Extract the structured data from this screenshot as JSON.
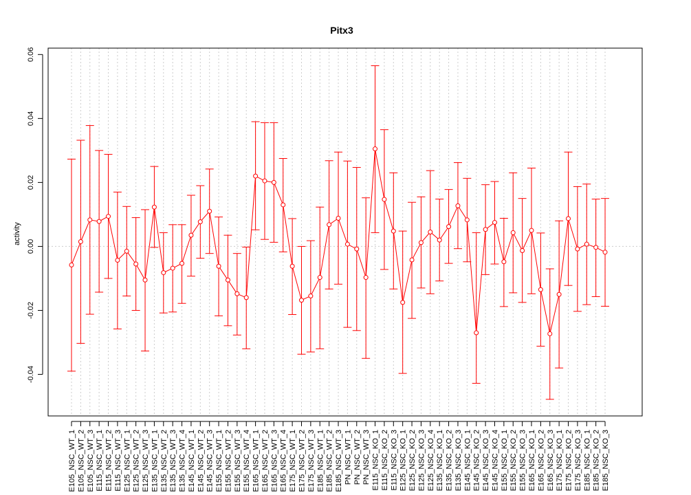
{
  "chart_data": {
    "type": "line",
    "title": "Pitx3",
    "xlabel": "",
    "ylabel": "activity",
    "ylim": [
      -0.053,
      0.062
    ],
    "y_ticks": [
      -0.04,
      -0.02,
      0.0,
      0.02,
      0.04,
      0.06
    ],
    "y_tick_labels": [
      "-0.04",
      "-0.02",
      "0.00",
      "0.02",
      "0.04",
      "0.06"
    ],
    "grid": true,
    "reference_line": 0.0,
    "colors": {
      "series": "#ff0000",
      "grid": "#cccccc",
      "axis": "#000000"
    },
    "categories": [
      "E105_NSC_WT_1",
      "E105_NSC_WT_2",
      "E105_NSC_WT_3",
      "E115_NSC_WT_1",
      "E115_NSC_WT_2",
      "E115_NSC_WT_3",
      "E125_NSC_WT_1",
      "E125_NSC_WT_2",
      "E125_NSC_WT_3",
      "E135_NSC_WT_1",
      "E135_NSC_WT_2",
      "E135_NSC_WT_3",
      "E135_NSC_WT_4",
      "E145_NSC_WT_1",
      "E145_NSC_WT_2",
      "E145_NSC_WT_3",
      "E155_NSC_WT_1",
      "E155_NSC_WT_2",
      "E155_NSC_WT_3",
      "E155_NSC_WT_4",
      "E165_NSC_WT_1",
      "E165_NSC_WT_2",
      "E165_NSC_WT_3",
      "E165_NSC_WT_4",
      "E175_NSC_WT_1",
      "E175_NSC_WT_2",
      "E175_NSC_WT_3",
      "E185_NSC_WT_1",
      "E185_NSC_WT_2",
      "E185_NSC_WT_3",
      "PN_NSC_WT_1",
      "PN_NSC_WT_2",
      "PN_NSC_WT_3",
      "E115_NSC_KO_1",
      "E115_NSC_KO_2",
      "E115_NSC_KO_3",
      "E125_NSC_KO_1",
      "E125_NSC_KO_2",
      "E125_NSC_KO_3",
      "E125_NSC_KO_4",
      "E135_NSC_KO_1",
      "E135_NSC_KO_2",
      "E135_NSC_KO_3",
      "E145_NSC_KO_1",
      "E145_NSC_KO_2",
      "E145_NSC_KO_3",
      "E145_NSC_KO_4",
      "E155_NSC_KO_1",
      "E155_NSC_KO_2",
      "E155_NSC_KO_3",
      "E165_NSC_KO_1",
      "E165_NSC_KO_2",
      "E165_NSC_KO_3",
      "E175_NSC_KO_1",
      "E175_NSC_KO_2",
      "E175_NSC_KO_3",
      "E185_NSC_KO_1",
      "E185_NSC_KO_2",
      "E185_NSC_KO_3"
    ],
    "values": [
      -0.0058,
      0.0015,
      0.0083,
      0.0078,
      0.0094,
      -0.0043,
      -0.0015,
      -0.0055,
      -0.0105,
      0.0123,
      -0.0082,
      -0.0068,
      -0.0053,
      0.0035,
      0.0077,
      0.011,
      -0.0062,
      -0.0105,
      -0.0148,
      -0.016,
      0.022,
      0.0205,
      0.02,
      0.013,
      -0.0062,
      -0.0168,
      -0.0155,
      -0.0097,
      0.0068,
      0.0088,
      0.0007,
      -0.0008,
      -0.0097,
      0.0305,
      0.0147,
      0.0048,
      -0.0175,
      -0.0042,
      0.0012,
      0.0045,
      0.002,
      0.0062,
      0.0127,
      0.0083,
      -0.027,
      0.0053,
      0.0075,
      -0.0048,
      0.0043,
      -0.0013,
      0.005,
      -0.0135,
      -0.0273,
      -0.015,
      0.0087,
      -0.0008,
      0.0007,
      -0.0003,
      -0.0018
    ],
    "upper": [
      0.0273,
      0.0332,
      0.0378,
      0.03,
      0.0288,
      0.017,
      0.0125,
      0.009,
      0.0115,
      0.025,
      0.0043,
      0.0068,
      0.0068,
      0.016,
      0.019,
      0.0242,
      0.0092,
      0.0035,
      -0.0022,
      -0.0002,
      0.039,
      0.0387,
      0.0387,
      0.0275,
      0.0087,
      0.0,
      0.0018,
      0.0123,
      0.0268,
      0.0295,
      0.0267,
      0.0247,
      0.0152,
      0.0565,
      0.0365,
      0.023,
      0.0048,
      0.0138,
      0.0155,
      0.0237,
      0.0148,
      0.0178,
      0.0262,
      0.0213,
      0.0043,
      0.0193,
      0.0203,
      0.0088,
      0.023,
      0.015,
      0.0245,
      0.0042,
      -0.007,
      0.008,
      0.0295,
      0.0187,
      0.0195,
      0.0148,
      0.015
    ],
    "lower": [
      -0.039,
      -0.0303,
      -0.0212,
      -0.0143,
      -0.01,
      -0.0258,
      -0.0155,
      -0.02,
      -0.0327,
      -0.0003,
      -0.0208,
      -0.0205,
      -0.0178,
      -0.0093,
      -0.0037,
      -0.0022,
      -0.0217,
      -0.0248,
      -0.0277,
      -0.032,
      0.0052,
      0.0022,
      0.0013,
      -0.0017,
      -0.0213,
      -0.0337,
      -0.033,
      -0.032,
      -0.0133,
      -0.0118,
      -0.0253,
      -0.0263,
      -0.035,
      0.0043,
      -0.0072,
      -0.0133,
      -0.0397,
      -0.0225,
      -0.013,
      -0.0148,
      -0.0108,
      -0.0053,
      -0.0007,
      -0.0048,
      -0.0428,
      -0.0088,
      -0.0055,
      -0.0188,
      -0.0145,
      -0.0175,
      -0.0148,
      -0.0312,
      -0.0478,
      -0.038,
      -0.0122,
      -0.0203,
      -0.0182,
      -0.0157,
      -0.0187
    ]
  }
}
